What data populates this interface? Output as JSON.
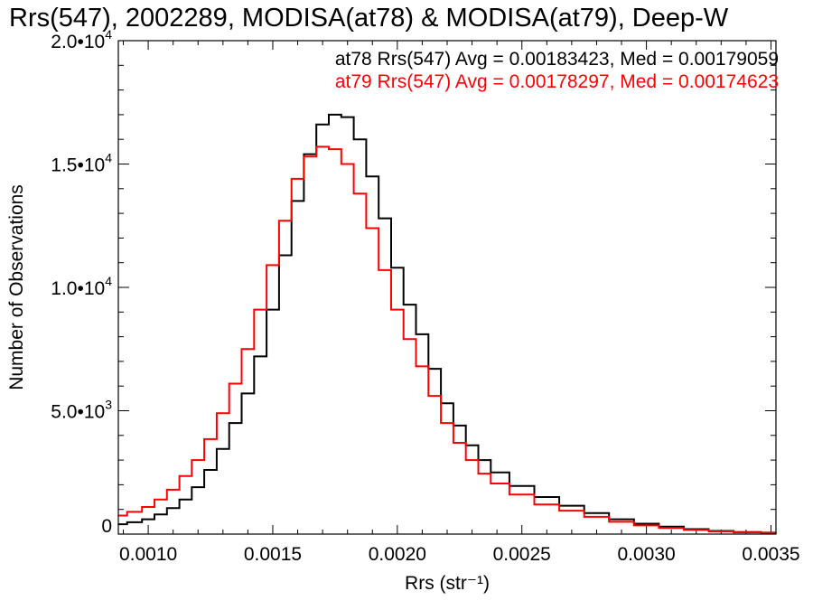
{
  "chart_data": {
    "type": "line",
    "title": "Rrs(547), 2002289, MODISA(at78) & MODISA(at79), Deep-W",
    "xlabel": "Rrs (str⁻¹)",
    "ylabel": "Number of Observations",
    "xlim": [
      0.00088,
      0.00352
    ],
    "ylim": [
      0,
      20000
    ],
    "xticks": [
      {
        "value": 0.001,
        "label": "0.0010"
      },
      {
        "value": 0.0015,
        "label": "0.0015"
      },
      {
        "value": 0.002,
        "label": "0.0020"
      },
      {
        "value": 0.0025,
        "label": "0.0025"
      },
      {
        "value": 0.003,
        "label": "0.0030"
      },
      {
        "value": 0.0035,
        "label": "0.0035"
      }
    ],
    "yticks": [
      {
        "value": 0,
        "mantissa": "0",
        "exponent": ""
      },
      {
        "value": 5000,
        "mantissa": "5.0•1",
        "exponent": "3"
      },
      {
        "value": 10000,
        "mantissa": "1.0•1",
        "exponent": "4"
      },
      {
        "value": 15000,
        "mantissa": "1.5•1",
        "exponent": "4"
      },
      {
        "value": 20000,
        "mantissa": "2.0•1",
        "exponent": "4"
      }
    ],
    "grid": false,
    "series": [
      {
        "name": "at78",
        "color": "#000000",
        "legend": "at78 Rrs(547) Avg = 0.00183423, Med = 0.00179059",
        "x": [
          0.00088,
          0.00095,
          0.001,
          0.00105,
          0.0011,
          0.00115,
          0.0012,
          0.00125,
          0.0013,
          0.00135,
          0.0014,
          0.00145,
          0.0015,
          0.00155,
          0.0016,
          0.00165,
          0.0017,
          0.00175,
          0.0018,
          0.00185,
          0.0019,
          0.00195,
          0.002,
          0.00205,
          0.0021,
          0.00215,
          0.0022,
          0.00225,
          0.0023,
          0.00235,
          0.0024,
          0.0025,
          0.0026,
          0.0027,
          0.0028,
          0.0029,
          0.003,
          0.0031,
          0.0032,
          0.0033,
          0.0034,
          0.00352
        ],
        "y": [
          400,
          480,
          600,
          800,
          1050,
          1400,
          1900,
          2600,
          3450,
          4500,
          5700,
          7200,
          9100,
          11300,
          13500,
          15400,
          16600,
          17000,
          16900,
          16000,
          14500,
          12800,
          10800,
          9300,
          8100,
          6700,
          5300,
          4400,
          3600,
          3000,
          2500,
          1950,
          1500,
          1150,
          850,
          600,
          420,
          300,
          200,
          130,
          80,
          60
        ]
      },
      {
        "name": "at79",
        "color": "#ff0000",
        "legend": "at79 Rrs(547) Avg = 0.00178297, Med = 0.00174623",
        "x": [
          0.00088,
          0.00095,
          0.001,
          0.00105,
          0.0011,
          0.00115,
          0.0012,
          0.00125,
          0.0013,
          0.00135,
          0.0014,
          0.00145,
          0.0015,
          0.00155,
          0.0016,
          0.00165,
          0.0017,
          0.00175,
          0.0018,
          0.00185,
          0.0019,
          0.00195,
          0.002,
          0.00205,
          0.0021,
          0.00215,
          0.0022,
          0.00225,
          0.0023,
          0.00235,
          0.0024,
          0.0025,
          0.0026,
          0.0027,
          0.0028,
          0.0029,
          0.003,
          0.0031,
          0.0032,
          0.0033,
          0.0034,
          0.00352
        ],
        "y": [
          750,
          900,
          1100,
          1400,
          1800,
          2350,
          3000,
          3850,
          4900,
          6100,
          7500,
          9100,
          10900,
          12700,
          14400,
          15300,
          15700,
          15600,
          15000,
          13800,
          12400,
          10700,
          9100,
          7900,
          6800,
          5600,
          4500,
          3700,
          3000,
          2450,
          2050,
          1600,
          1200,
          950,
          700,
          500,
          350,
          250,
          170,
          110,
          70,
          50
        ]
      }
    ]
  }
}
